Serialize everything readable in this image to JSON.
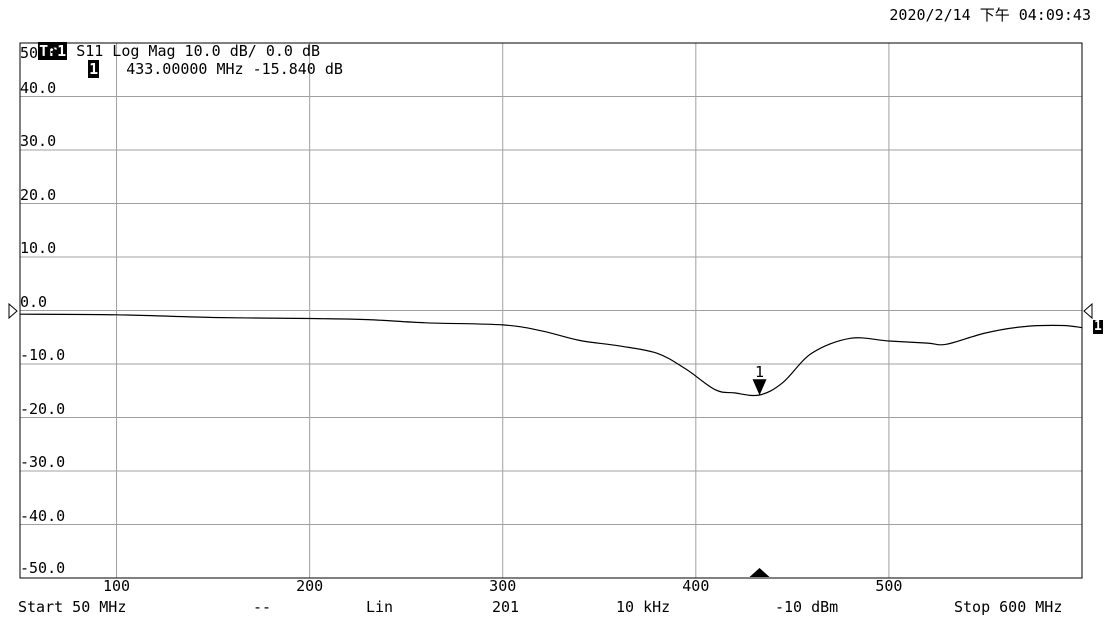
{
  "header": {
    "datetime": "2020/2/14 下午 04:09:43",
    "trace_badge": "Tr1",
    "trace_info": "S11 Log Mag 10.0 dB/ 0.0 dB",
    "marker_badge": "1",
    "marker_readout": "433.00000 MHz -15.840 dB"
  },
  "footer": {
    "start": "Start 50 MHz",
    "dashes": "--",
    "scale": "Lin",
    "points": "201",
    "ifbw": "10 kHz",
    "power": "-10 dBm",
    "stop": "Stop 600 MHz"
  },
  "right_marker_badge": "1",
  "chart_data": {
    "type": "line",
    "title": "",
    "xlabel": "",
    "ylabel": "",
    "xlim": [
      50,
      600
    ],
    "ylim": [
      -50,
      50
    ],
    "x_ticks": [
      100,
      200,
      300,
      400,
      500
    ],
    "x_tick_labels": [
      "100",
      "200",
      "300",
      "400",
      "500"
    ],
    "y_ticks": [
      50,
      40,
      30,
      20,
      10,
      0,
      -10,
      -20,
      -30,
      -40,
      -50
    ],
    "y_tick_labels": [
      "50.0",
      "40.0",
      "30.0",
      "20.0",
      "10.0",
      "0.0",
      "-10.0",
      "-20.0",
      "-30.0",
      "-40.0",
      "-50.0"
    ],
    "grid": true,
    "series": [
      {
        "x": [
          50,
          100,
          150,
          200,
          230,
          260,
          300,
          320,
          340,
          360,
          380,
          395,
          410,
          420,
          433,
          445,
          460,
          480,
          500,
          520,
          530,
          550,
          570,
          590,
          600
        ],
        "y": [
          -0.7,
          -0.8,
          -1.3,
          -1.5,
          -1.7,
          -2.3,
          -2.7,
          -3.8,
          -5.6,
          -6.6,
          -8.0,
          -11.0,
          -14.8,
          -15.4,
          -15.8,
          -13.5,
          -8.0,
          -5.2,
          -5.7,
          -6.1,
          -6.3,
          -4.2,
          -3.0,
          -2.8,
          -3.2
        ],
        "color": "#000000"
      }
    ],
    "marker": {
      "label": "1",
      "x": 433,
      "y": -15.84
    }
  }
}
